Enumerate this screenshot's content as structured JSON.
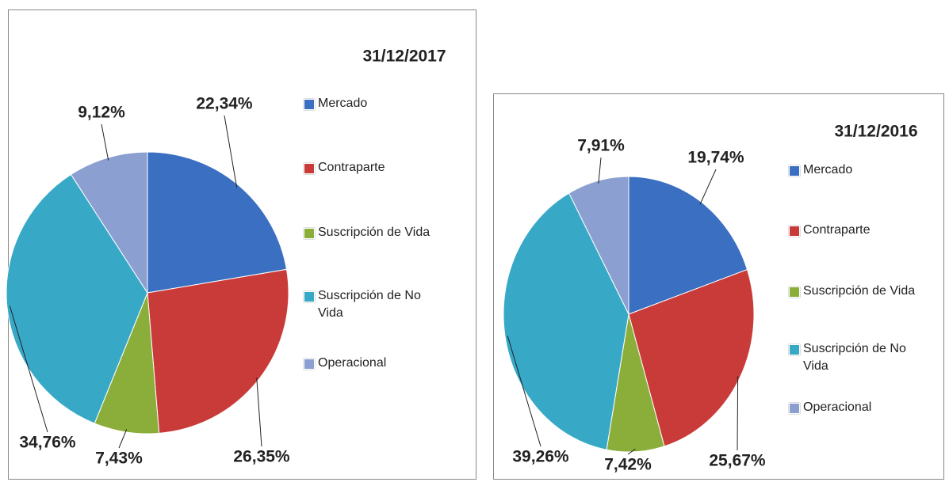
{
  "chart_data": [
    {
      "type": "pie",
      "title": "31/12/2017",
      "categories": [
        "Mercado",
        "Contraparte",
        "Suscripción de Vida",
        "Suscripción de No Vida",
        "Operacional"
      ],
      "values": [
        22.34,
        26.35,
        7.43,
        34.76,
        9.12
      ],
      "value_labels": [
        "22,34%",
        "26,35%",
        "7,43%",
        "34,76%",
        "9,12%"
      ],
      "colors": [
        "#3b6fc1",
        "#c93b39",
        "#8bad3a",
        "#37a9c7",
        "#8b9fd1"
      ]
    },
    {
      "type": "pie",
      "title": "31/12/2016",
      "categories": [
        "Mercado",
        "Contraparte",
        "Suscripción de Vida",
        "Suscripción de No Vida",
        "Operacional"
      ],
      "values": [
        19.74,
        25.67,
        7.42,
        39.26,
        7.91
      ],
      "value_labels": [
        "19,74%",
        "25,67%",
        "7,42%",
        "39,26%",
        "7,91%"
      ],
      "colors": [
        "#3b6fc1",
        "#c93b39",
        "#8bad3a",
        "#37a9c7",
        "#8b9fd1"
      ]
    }
  ]
}
